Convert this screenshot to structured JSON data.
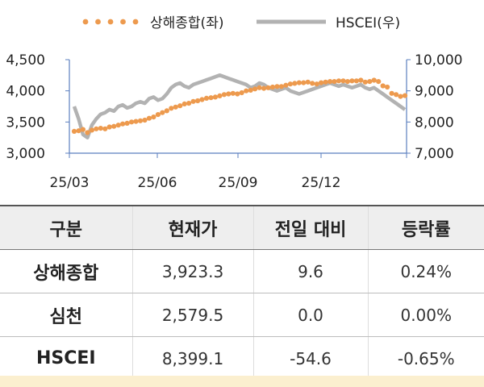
{
  "chart_data": {
    "type": "line",
    "legend_position": "top-center",
    "grid": false,
    "x_tick_labels": [
      "25/03",
      "25/06",
      "25/09",
      "25/12"
    ],
    "left_axis": {
      "ylim": [
        3000,
        4500
      ],
      "ticks": [
        3000,
        3500,
        4000,
        4500
      ],
      "tick_labels": [
        "3,000",
        "3,500",
        "4,000",
        "4,500"
      ]
    },
    "right_axis": {
      "ylim": [
        7000,
        10000
      ],
      "ticks": [
        7000,
        8000,
        9000,
        10000
      ],
      "tick_labels": [
        "7,000",
        "8,000",
        "9,000",
        "10,000"
      ]
    },
    "series": [
      {
        "name": "상해종합(좌)",
        "axis": "left",
        "style": "dotted",
        "color": "#ed9a4e",
        "values": [
          3350,
          3360,
          3380,
          3330,
          3370,
          3390,
          3400,
          3390,
          3420,
          3430,
          3450,
          3470,
          3480,
          3500,
          3510,
          3520,
          3530,
          3560,
          3580,
          3620,
          3650,
          3680,
          3720,
          3740,
          3760,
          3790,
          3800,
          3830,
          3840,
          3860,
          3880,
          3890,
          3900,
          3920,
          3940,
          3950,
          3960,
          3950,
          3970,
          4000,
          4010,
          4030,
          4050,
          4040,
          4050,
          4060,
          4070,
          4070,
          4090,
          4110,
          4120,
          4130,
          4130,
          4140,
          4120,
          4110,
          4130,
          4140,
          4150,
          4150,
          4160,
          4160,
          4150,
          4160,
          4160,
          4170,
          4140,
          4150,
          4170,
          4150,
          4080,
          4060,
          3960,
          3940,
          3910,
          3923
        ]
      },
      {
        "name": "HSCEI(우)",
        "axis": "right",
        "style": "solid",
        "color": "#b2b2b2",
        "values": [
          8500,
          8100,
          7600,
          7500,
          7900,
          8100,
          8250,
          8300,
          8400,
          8350,
          8500,
          8550,
          8450,
          8500,
          8600,
          8650,
          8600,
          8750,
          8800,
          8700,
          8750,
          8900,
          9100,
          9200,
          9250,
          9150,
          9100,
          9200,
          9250,
          9300,
          9350,
          9400,
          9450,
          9500,
          9450,
          9400,
          9350,
          9300,
          9250,
          9200,
          9100,
          9150,
          9250,
          9200,
          9100,
          9050,
          9000,
          9050,
          9100,
          9000,
          8950,
          8900,
          8950,
          9000,
          9050,
          9100,
          9150,
          9200,
          9250,
          9200,
          9150,
          9200,
          9150,
          9100,
          9150,
          9200,
          9100,
          9050,
          9100,
          9000,
          8900,
          8800,
          8700,
          8600,
          8500,
          8399
        ]
      }
    ]
  },
  "table": {
    "headers": [
      "구분",
      "현재가",
      "전일 대비",
      "등락률"
    ],
    "rows": [
      [
        "상해종합",
        "3,923.3",
        "9.6",
        "0.24%"
      ],
      [
        "심천",
        "2,579.5",
        "0.0",
        "0.00%"
      ],
      [
        "HSCEI",
        "8,399.1",
        "-54.6",
        "-0.65%"
      ]
    ]
  }
}
